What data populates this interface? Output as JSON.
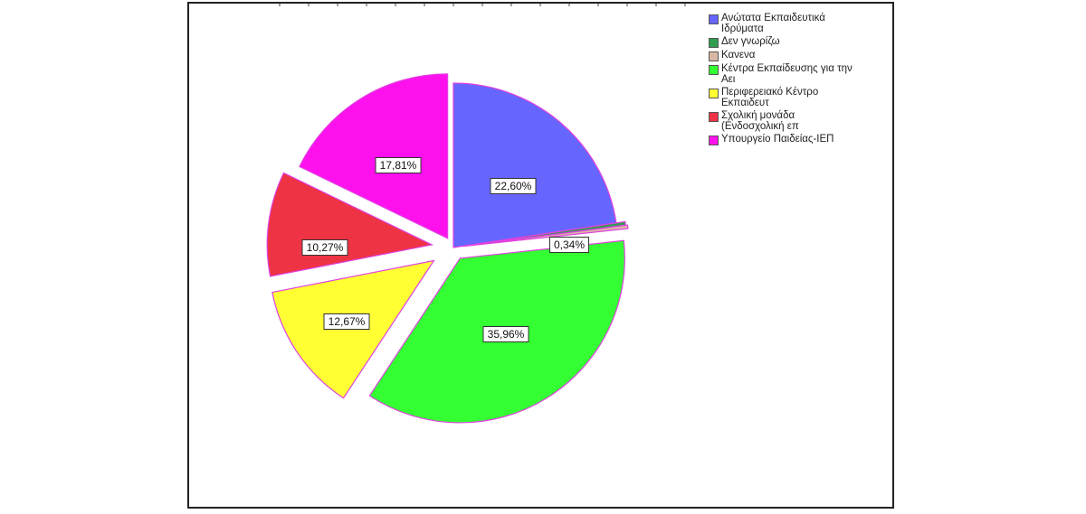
{
  "chart_data": {
    "type": "pie",
    "title": "",
    "legend_position": "top-right",
    "slices": [
      {
        "label": "Ανώτατα Εκπαιδευτικά\nΙδρύματα",
        "value": 22.6,
        "value_label": "22,60%",
        "color": "#6666ff",
        "exploded": false
      },
      {
        "label": "Δεν γνωρίζω",
        "value": 0.34,
        "value_label": "0,34%",
        "color": "#2e9e4e",
        "exploded": true
      },
      {
        "label": "Κανενα",
        "value": 0.34,
        "value_label": "",
        "color": "#d9b9a6",
        "exploded": true
      },
      {
        "label": "Κέντρα Εκπαίδευσης για την\nΑει",
        "value": 35.96,
        "value_label": "35,96%",
        "color": "#33ff33",
        "exploded": true
      },
      {
        "label": "Περιφερειακό Κέντρο\nΕκπαιδευτ",
        "value": 12.67,
        "value_label": "12,67%",
        "color": "#ffff33",
        "exploded": true
      },
      {
        "label": "Σχολική μονάδα\n(Ενδοσχολική επ",
        "value": 10.27,
        "value_label": "10,27%",
        "color": "#ee3344",
        "exploded": true
      },
      {
        "label": "Υπουργείο Παιδείας-ΙΕΠ",
        "value": 17.81,
        "value_label": "17,81%",
        "color": "#ff11ee",
        "exploded": true
      }
    ]
  }
}
